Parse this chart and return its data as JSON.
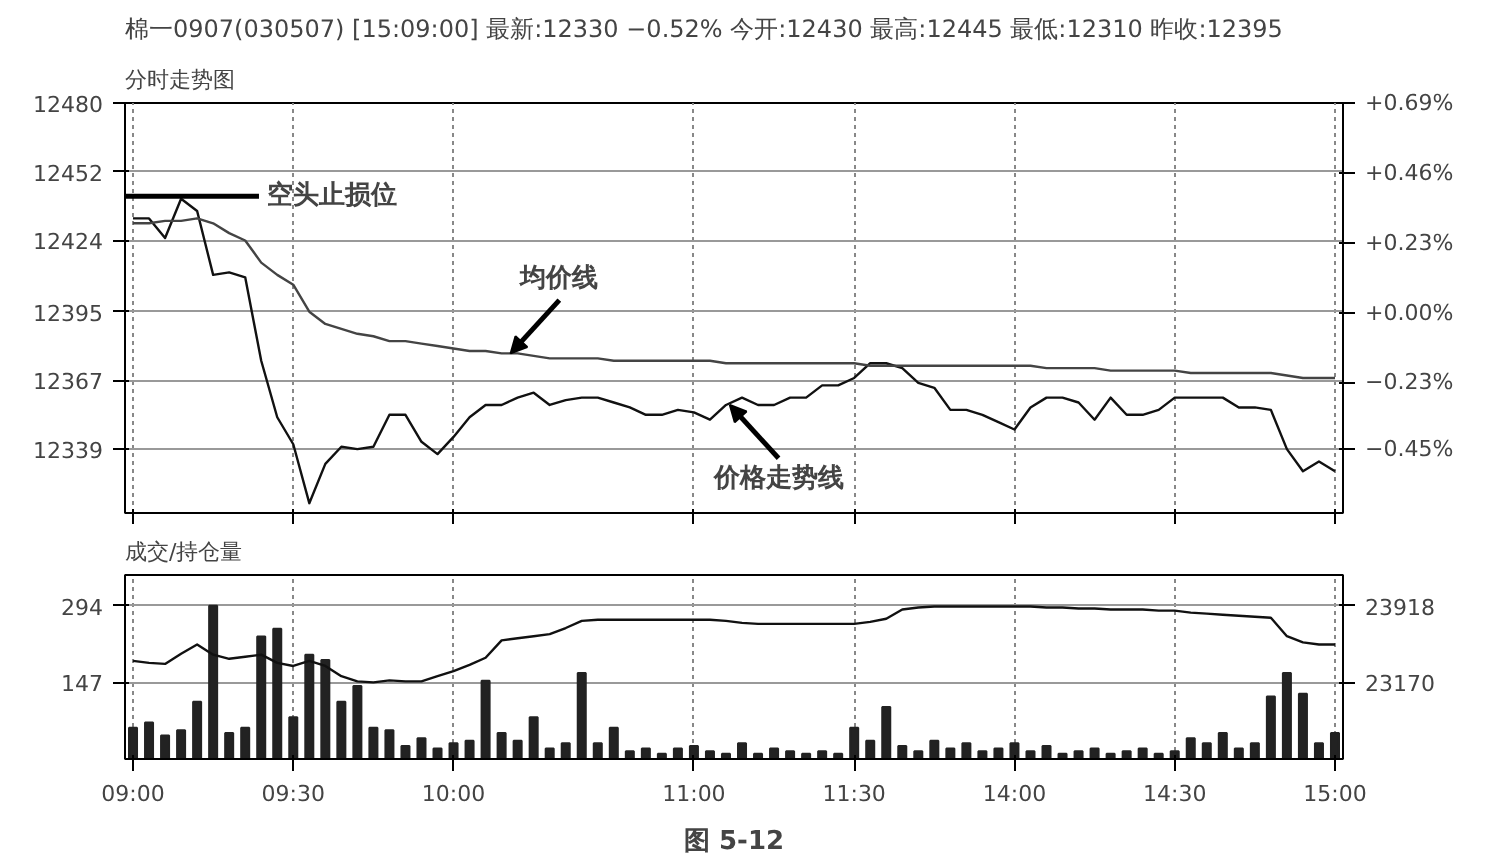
{
  "chart_data": [
    {
      "type": "line",
      "title": "棉一0907(030507) [15:09:00] 最新:12330 −0.52% 今开:12430 最高:12445 最低:12310 昨收:12395",
      "subtitle": "分时走势图",
      "categories": [
        null,
        null,
        null,
        null,
        null,
        null,
        null,
        null,
        null,
        null,
        null,
        null,
        null,
        null,
        null,
        null,
        null,
        null,
        null,
        null,
        null,
        null,
        null,
        null,
        null,
        null,
        null,
        null,
        null,
        null,
        null,
        null,
        null,
        null,
        null,
        null,
        null,
        null,
        null,
        null,
        null,
        null,
        null,
        null,
        null,
        null,
        null,
        null,
        null,
        null,
        null,
        null,
        null,
        null,
        null,
        null,
        null,
        null,
        null,
        null,
        null,
        null,
        null,
        null,
        null,
        null,
        null,
        null,
        null,
        null,
        null,
        null,
        null,
        null,
        null,
        null
      ],
      "ylim": [
        12313,
        12480
      ],
      "yticks": [
        12339,
        12367,
        12395,
        12424,
        12452,
        12480
      ],
      "y2lim": [
        -0.66,
        0.69
      ],
      "y2ticks": [
        {
          "value": -0.45,
          "label": "−0.45%"
        },
        {
          "value": -0.23,
          "label": "−0.23%"
        },
        {
          "value": 0,
          "label": "+0.00%"
        },
        {
          "value": 0.23,
          "label": "+0.23%"
        },
        {
          "value": 0.46,
          "label": "+0.46%"
        },
        {
          "value": 0.69,
          "label": "+0.69%"
        }
      ],
      "grid": true,
      "series": [
        {
          "color": "#111111",
          "values": [
            12433,
            12433,
            12425,
            12441,
            12436,
            12410,
            12411,
            12409,
            12375,
            12352,
            12341,
            12317,
            12333,
            12340,
            12339,
            12340,
            12353,
            12353,
            12342,
            12337,
            12344,
            12352,
            12357,
            12357,
            12360,
            12362,
            12357,
            12359,
            12360,
            12360,
            12358,
            12356,
            12353,
            12353,
            12355,
            12354,
            12351,
            12357,
            12360,
            12357,
            12357,
            12360,
            12360,
            12365,
            12365,
            12368,
            12374,
            12374,
            12372,
            12366,
            12364,
            12355,
            12355,
            12353,
            12350,
            12347,
            12356,
            12360,
            12360,
            12358,
            12351,
            12360,
            12353,
            12353,
            12355,
            12360,
            12360,
            12360,
            12360,
            12356,
            12356,
            12355,
            12339,
            12330,
            12334,
            12330
          ]
        },
        {
          "color": "#444444",
          "values": [
            12431,
            12431,
            12432,
            12432,
            12433,
            12431,
            12427,
            12424,
            12415,
            12410,
            12406,
            12395,
            12390,
            12388,
            12386,
            12385,
            12383,
            12383,
            12382,
            12381,
            12380,
            12379,
            12379,
            12378,
            12378,
            12377,
            12376,
            12376,
            12376,
            12376,
            12375,
            12375,
            12375,
            12375,
            12375,
            12375,
            12375,
            12374,
            12374,
            12374,
            12374,
            12374,
            12374,
            12374,
            12374,
            12374,
            12373,
            12373,
            12373,
            12373,
            12373,
            12373,
            12373,
            12373,
            12373,
            12373,
            12373,
            12372,
            12372,
            12372,
            12372,
            12371,
            12371,
            12371,
            12371,
            12371,
            12370,
            12370,
            12370,
            12370,
            12370,
            12370,
            12369,
            12368,
            12368,
            12368
          ]
        }
      ],
      "ref_lines": [
        {
          "axis": "y",
          "value": 12442,
          "label": "空头止损位"
        }
      ],
      "annotations": [
        {
          "text": "均价线",
          "y": 12378
        },
        {
          "text": "价格走势线",
          "y": 12357
        }
      ]
    },
    {
      "type": "bar",
      "subtitle": "成交/持仓量",
      "categories": [
        "09:00",
        null,
        null,
        null,
        null,
        null,
        null,
        null,
        null,
        null,
        "09:30",
        null,
        null,
        null,
        null,
        null,
        null,
        null,
        null,
        null,
        "10:00",
        null,
        null,
        null,
        null,
        null,
        null,
        null,
        null,
        null,
        null,
        null,
        null,
        null,
        null,
        "11:00",
        null,
        null,
        null,
        null,
        null,
        null,
        null,
        null,
        null,
        "11:30",
        null,
        null,
        null,
        null,
        null,
        null,
        null,
        null,
        null,
        "14:00",
        null,
        null,
        null,
        null,
        null,
        null,
        null,
        null,
        null,
        "14:30",
        null,
        null,
        null,
        null,
        null,
        null,
        null,
        null,
        null,
        "15:00"
      ],
      "ylim": [
        0,
        353
      ],
      "yticks": [
        147,
        294
      ],
      "y2lim": [
        22423,
        24217
      ],
      "y2ticks": [
        23170,
        23918
      ],
      "grid": true,
      "series": [
        {
          "type": "bar",
          "color": "#222222",
          "values": [
            60,
            70,
            45,
            55,
            110,
            294,
            50,
            60,
            235,
            250,
            80,
            200,
            190,
            110,
            140,
            60,
            55,
            25,
            40,
            20,
            30,
            35,
            150,
            50,
            35,
            80,
            20,
            30,
            165,
            30,
            60,
            15,
            20,
            10,
            20,
            25,
            15,
            10,
            30,
            10,
            20,
            15,
            10,
            15,
            10,
            60,
            35,
            100,
            25,
            15,
            35,
            20,
            30,
            15,
            20,
            30,
            15,
            25,
            10,
            15,
            20,
            10,
            15,
            20,
            10,
            15,
            40,
            30,
            50,
            20,
            30,
            120,
            165,
            125,
            30,
            50
          ]
        },
        {
          "type": "line",
          "axis": "y2",
          "color": "#111111",
          "values": [
            23380,
            23360,
            23350,
            23450,
            23540,
            23440,
            23400,
            23420,
            23440,
            23360,
            23330,
            23380,
            23330,
            23230,
            23180,
            23170,
            23190,
            23180,
            23180,
            23230,
            23280,
            23340,
            23410,
            23580,
            23600,
            23620,
            23640,
            23700,
            23770,
            23780,
            23780,
            23780,
            23780,
            23780,
            23780,
            23780,
            23780,
            23770,
            23750,
            23740,
            23740,
            23740,
            23740,
            23740,
            23740,
            23740,
            23760,
            23790,
            23880,
            23900,
            23910,
            23910,
            23910,
            23910,
            23910,
            23910,
            23910,
            23900,
            23900,
            23890,
            23890,
            23880,
            23880,
            23880,
            23870,
            23870,
            23850,
            23840,
            23830,
            23820,
            23810,
            23800,
            23620,
            23560,
            23540,
            23540
          ]
        }
      ],
      "annotations": [
        "图 5-12"
      ]
    }
  ]
}
